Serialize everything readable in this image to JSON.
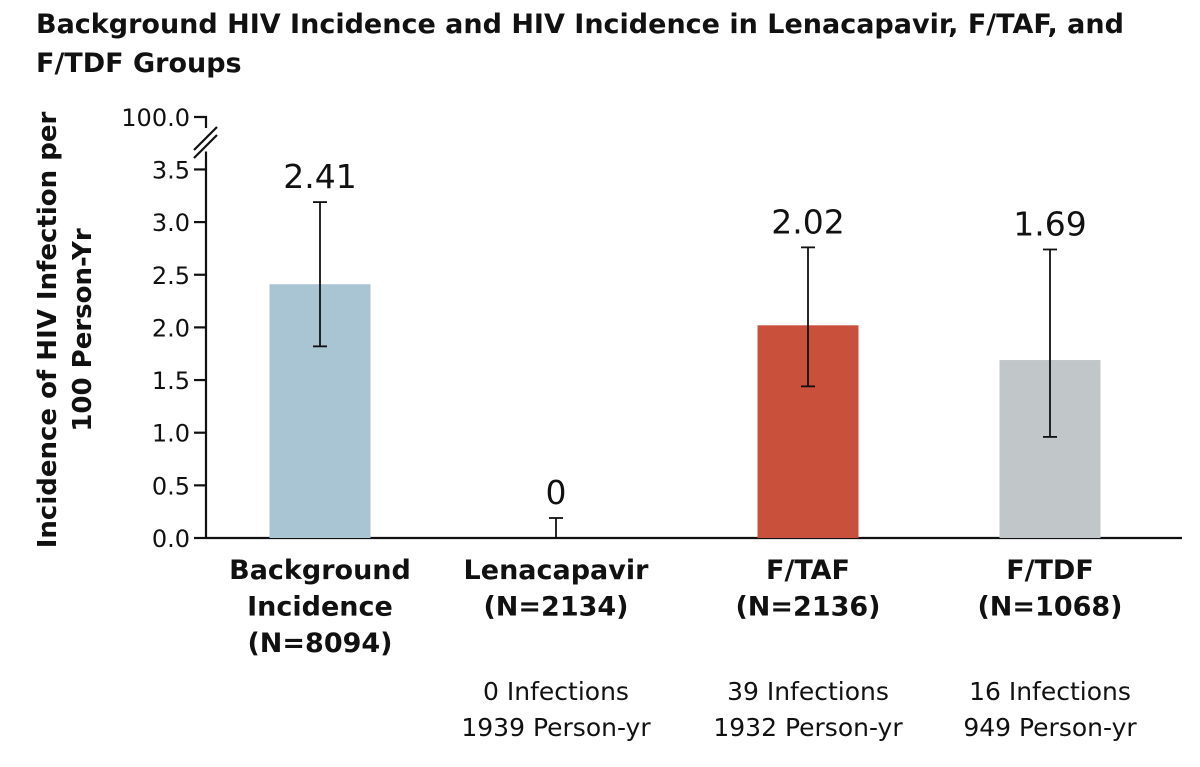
{
  "chart_data": {
    "type": "bar",
    "title_lines": [
      "Background HIV Incidence and HIV Incidence in Lenacapavir, F/TAF, and",
      "F/TDF Groups"
    ],
    "ylabel_lines": [
      "Incidence of HIV Infection per",
      "100 Person-Yr"
    ],
    "xlabel": "",
    "ylim": [
      0,
      3.5
    ],
    "y_break_top_tick": "100.0",
    "yticks": [
      "0.0",
      "0.5",
      "1.0",
      "1.5",
      "2.0",
      "2.5",
      "3.0",
      "3.5"
    ],
    "grid": false,
    "categories": [
      {
        "label_lines": [
          "Background",
          "Incidence",
          "(N=8094)"
        ],
        "value": 2.41,
        "value_label": "2.41",
        "ci": [
          1.82,
          3.19
        ],
        "color": "#a9c4d2",
        "note_lines": []
      },
      {
        "label_lines": [
          "Lenacapavir",
          "(N=2134)"
        ],
        "value": 0,
        "value_label": "0",
        "ci": [
          0,
          0.19
        ],
        "color": "#a9c4d2",
        "note_lines": [
          "0 Infections",
          "1939 Person-yr"
        ]
      },
      {
        "label_lines": [
          "F/TAF",
          "(N=2136)"
        ],
        "value": 2.02,
        "value_label": "2.02",
        "ci": [
          1.44,
          2.76
        ],
        "color": "#c9503a",
        "note_lines": [
          "39 Infections",
          "1932 Person-yr"
        ]
      },
      {
        "label_lines": [
          "F/TDF",
          "(N=1068)"
        ],
        "value": 1.69,
        "value_label": "1.69",
        "ci": [
          0.96,
          2.74
        ],
        "color": "#c1c6c9",
        "note_lines": [
          "16 Infections",
          "949 Person-yr"
        ]
      }
    ]
  }
}
